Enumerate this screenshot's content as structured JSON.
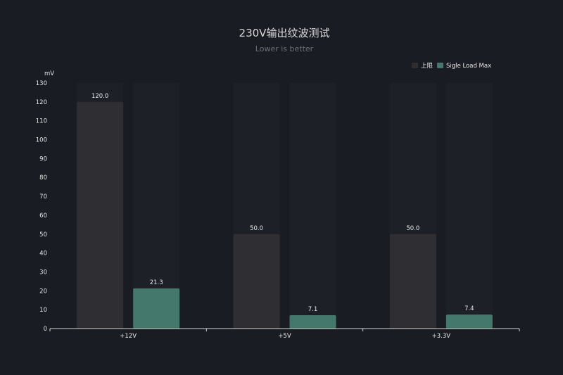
{
  "colors": {
    "background": "#191c23",
    "bar_background": "#1e2028",
    "series_limit": "#2f2f33",
    "series_max": "#45786c",
    "axis": "#d9d9d9",
    "text": "#e8e8e8"
  },
  "chart_data": {
    "type": "bar",
    "title": "230V输出纹波测试",
    "subtitle": "Lower is better",
    "ylabel": "mV",
    "xlabel": "",
    "ylim": [
      0,
      130
    ],
    "ytick_step": 10,
    "grid": false,
    "legend_position": "top-right",
    "categories": [
      "+12V",
      "+5V",
      "+3.3V"
    ],
    "series": [
      {
        "name": "上限",
        "values": [
          120.0,
          50.0,
          50.0
        ],
        "labels": [
          "120.0",
          "50.0",
          "50.0"
        ]
      },
      {
        "name": "Sigle Load Max",
        "values": [
          21.3,
          7.1,
          7.4
        ],
        "labels": [
          "21.3",
          "7.1",
          "7.4"
        ]
      }
    ]
  }
}
